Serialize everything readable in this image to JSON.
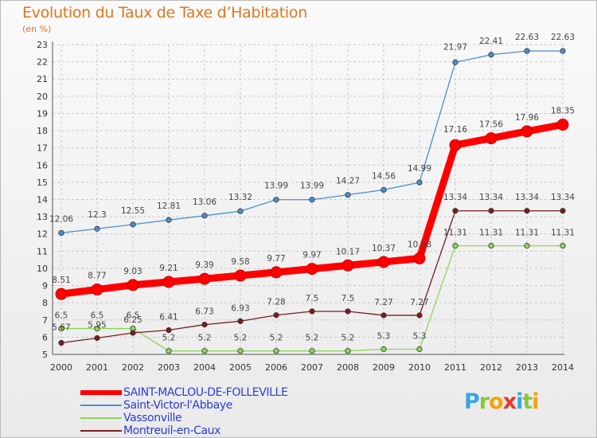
{
  "title": "Evolution du Taux de Taxe d’Habitation",
  "unit_label": "(en %)",
  "logo": {
    "letters": [
      "P",
      "r",
      "o",
      "x",
      "i",
      "t",
      "i"
    ],
    "colors": [
      "#3aa6e0",
      "#8cc63f",
      "#f2a20c",
      "#e8392b",
      "#3aa6e0",
      "#8cc63f",
      "#f2a20c"
    ]
  },
  "chart_data": {
    "type": "line",
    "title": "Evolution du Taux de Taxe d’Habitation",
    "ylabel": "(en %)",
    "xlabel": "",
    "x": [
      2000,
      2001,
      2002,
      2003,
      2004,
      2005,
      2006,
      2007,
      2008,
      2009,
      2010,
      2011,
      2012,
      2013,
      2014
    ],
    "x_labels": [
      "2000",
      "2001",
      "2002",
      "2003",
      "2004",
      "2005",
      "2006",
      "2007",
      "2008",
      "2009",
      "2010",
      "2011",
      "2012",
      "2013",
      "2014"
    ],
    "ylim": [
      5,
      23
    ],
    "y_ticks": [
      "5",
      "6",
      "7",
      "8",
      "9",
      "10",
      "11",
      "12",
      "13",
      "14",
      "15",
      "16",
      "17",
      "18",
      "19",
      "20",
      "21",
      "22",
      "23"
    ],
    "grid": true,
    "legend_position": "bottom-left",
    "series": [
      {
        "name": "SAINT-MACLOU-DE-FOLLEVILLE",
        "color": "#ff0000",
        "emphasis": true,
        "values": [
          8.51,
          8.77,
          9.03,
          9.21,
          9.39,
          9.58,
          9.77,
          9.97,
          10.17,
          10.37,
          10.58,
          17.16,
          17.56,
          17.96,
          18.35
        ],
        "labels": [
          "8.51",
          "8.77",
          "9.03",
          "9.21",
          "9.39",
          "9.58",
          "9.77",
          "9.97",
          "10.17",
          "10.37",
          "10.58",
          "17.16",
          "17.56",
          "17.96",
          "18.35"
        ]
      },
      {
        "name": "Saint-Victor-l'Abbaye",
        "color": "#4a8fd0",
        "emphasis": false,
        "values": [
          12.06,
          12.3,
          12.55,
          12.81,
          13.06,
          13.32,
          13.99,
          13.99,
          14.27,
          14.56,
          14.99,
          21.97,
          22.41,
          22.63,
          22.63
        ],
        "labels": [
          "12.06",
          "12.3",
          "12.55",
          "12.81",
          "13.06",
          "13.32",
          "13.99",
          "13.99",
          "14.27",
          "14.56",
          "14.99",
          "21.97",
          "22.41",
          "22.63",
          "22.63"
        ]
      },
      {
        "name": "Vassonville",
        "color": "#8fd65a",
        "emphasis": false,
        "values": [
          6.5,
          6.5,
          6.5,
          5.2,
          5.2,
          5.2,
          5.2,
          5.2,
          5.2,
          5.3,
          5.3,
          11.31,
          11.31,
          11.31,
          11.31
        ],
        "labels": [
          "6.5",
          "6.5",
          "6.5",
          "5.2",
          "5.2",
          "5.2",
          "5.2",
          "5.2",
          "5.2",
          "5.3",
          "5.3",
          "11.31",
          "11.31",
          "11.31",
          "11.31"
        ]
      },
      {
        "name": "Montreuil-en-Caux",
        "color": "#7a1c1c",
        "emphasis": false,
        "values": [
          5.67,
          5.95,
          6.25,
          6.41,
          6.73,
          6.93,
          7.28,
          7.5,
          7.5,
          7.27,
          7.27,
          13.34,
          13.34,
          13.34,
          13.34
        ],
        "labels": [
          "5.67",
          "5.95",
          "6.25",
          "6.41",
          "6.73",
          "6.93",
          "7.28",
          "7.5",
          "7.5",
          "7.27",
          "7.27",
          "13.34",
          "13.34",
          "13.34",
          "13.34"
        ]
      }
    ]
  }
}
